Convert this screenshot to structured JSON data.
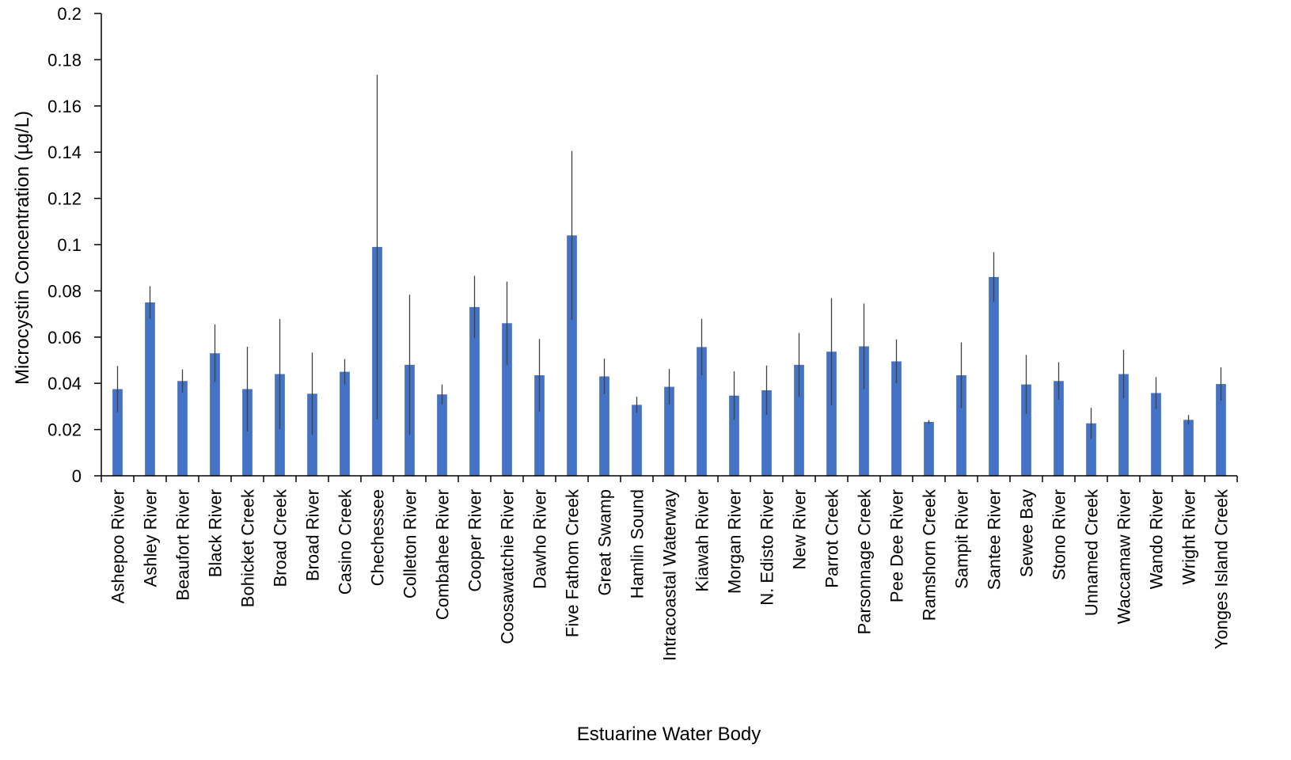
{
  "chart_data": {
    "type": "bar",
    "title": "",
    "xlabel": "Estuarine Water Body",
    "ylabel": "Microcystin Concentration (µg/L)",
    "ylim": [
      0,
      0.2
    ],
    "yticks": [
      "0",
      "0.02",
      "0.04",
      "0.06",
      "0.08",
      "0.1",
      "0.12",
      "0.14",
      "0.16",
      "0.18",
      "0.2"
    ],
    "grid": false,
    "legend": "none",
    "bar_color": "#4472C4",
    "error_bar_color": "#404040",
    "categories": [
      "Ashepoo River",
      "Ashley River",
      "Beaufort River",
      "Black River",
      "Bohicket Creek",
      "Broad Creek",
      "Broad River",
      "Casino Creek",
      "Chechessee",
      "Colleton River",
      "Combahee River",
      "Cooper River",
      "Coosawatchie River",
      "Dawho River",
      "Five Fathom Creek",
      "Great Swamp",
      "Hamlin Sound",
      "Intracoastal Waterway",
      "Kiawah River",
      "Morgan River",
      "N. Edisto River",
      "New River",
      "Parrot Creek",
      "Parsonnage Creek",
      "Pee Dee River",
      "Ramshorn Creek",
      "Sampit River",
      "Santee River",
      "Sewee Bay",
      "Stono River",
      "Unnamed Creek",
      "Waccamaw River",
      "Wando River",
      "Wright River",
      "Yonges Island Creek"
    ],
    "values": [
      0.0375,
      0.075,
      0.041,
      0.053,
      0.0375,
      0.044,
      0.0355,
      0.045,
      0.099,
      0.048,
      0.0352,
      0.073,
      0.066,
      0.0435,
      0.104,
      0.043,
      0.0307,
      0.0385,
      0.0557,
      0.0347,
      0.037,
      0.048,
      0.0537,
      0.056,
      0.0495,
      0.0233,
      0.0435,
      0.086,
      0.0395,
      0.041,
      0.0227,
      0.044,
      0.0358,
      0.0242,
      0.0397
    ],
    "error_bars": [
      0.01,
      0.007,
      0.005,
      0.0125,
      0.0183,
      0.0238,
      0.0178,
      0.0055,
      0.0745,
      0.0303,
      0.0043,
      0.0135,
      0.018,
      0.0157,
      0.0365,
      0.0077,
      0.0035,
      0.0077,
      0.0122,
      0.0105,
      0.0107,
      0.0138,
      0.0232,
      0.0185,
      0.0095,
      0.0008,
      0.0142,
      0.0107,
      0.0128,
      0.0081,
      0.0067,
      0.0105,
      0.0069,
      0.0021,
      0.0072
    ]
  }
}
